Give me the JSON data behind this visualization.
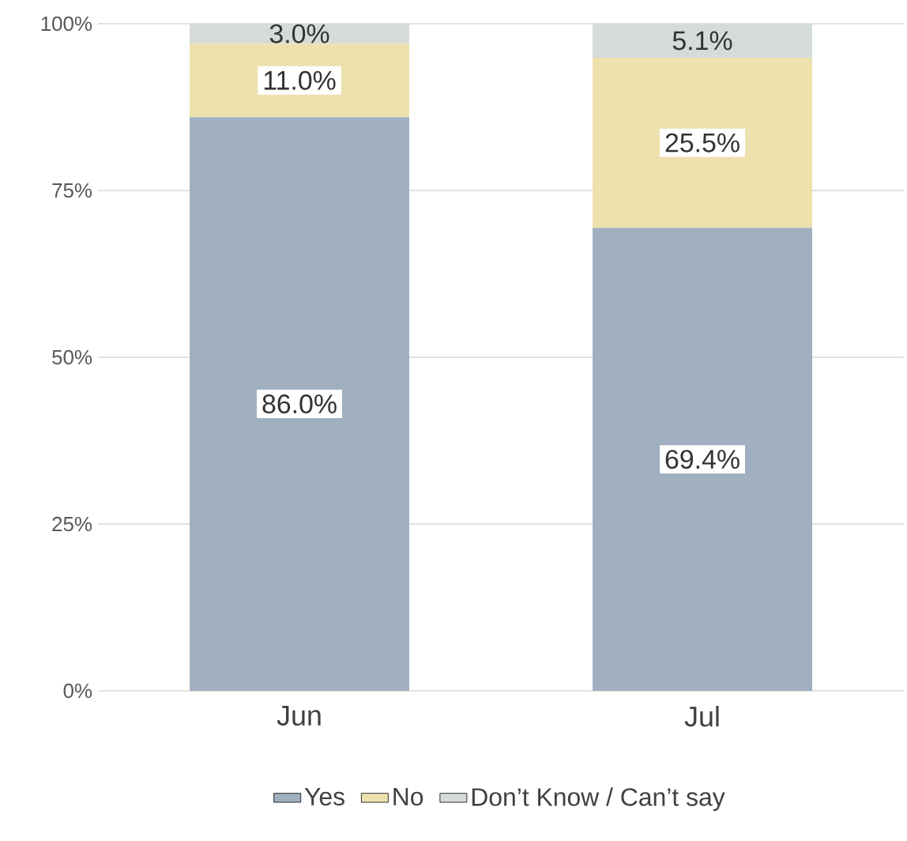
{
  "chart_data": {
    "type": "bar",
    "stacked": true,
    "categories": [
      "Jun",
      "Jul"
    ],
    "series": [
      {
        "name": "Yes",
        "color": "#a0b0c1",
        "values": [
          86.0,
          69.4
        ],
        "value_labels": [
          "86.0%",
          "69.4%"
        ]
      },
      {
        "name": "No",
        "color": "#ede1ae",
        "values": [
          11.0,
          25.5
        ],
        "value_labels": [
          "11.0%",
          "25.5%"
        ]
      },
      {
        "name": "Don’t Know / Can’t say",
        "color": "#d5dcd8",
        "values": [
          3.0,
          5.1
        ],
        "value_labels": [
          "3.0%",
          "5.1%"
        ]
      }
    ],
    "ylim": [
      0,
      100
    ],
    "yticks": [
      {
        "value": 0,
        "label": "0%"
      },
      {
        "value": 25,
        "label": "25%"
      },
      {
        "value": 50,
        "label": "50%"
      },
      {
        "value": 75,
        "label": "75%"
      },
      {
        "value": 100,
        "label": "100%"
      }
    ],
    "grid": "y",
    "legend": "bottom"
  }
}
